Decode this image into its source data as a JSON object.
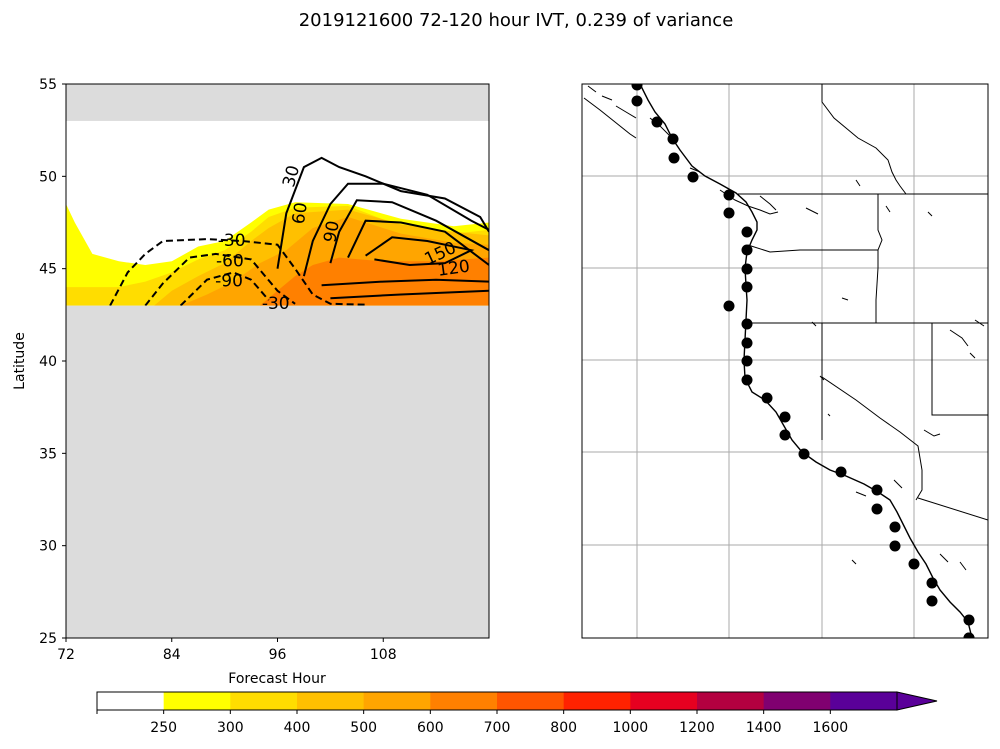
{
  "chart_data": [
    {
      "type": "contour",
      "title": "2019121600 72-120 hour IVT, 0.239 of variance",
      "xlabel": "Forecast Hour",
      "ylabel": "Latitude",
      "xlim": [
        72,
        120
      ],
      "ylim": [
        25,
        55
      ],
      "xticks": [
        "72",
        "84",
        "96",
        "108"
      ],
      "yticks": [
        "25",
        "30",
        "35",
        "40",
        "45",
        "50",
        "55"
      ],
      "missing_color": "#dcdcdc",
      "data_band_lat": [
        43,
        53
      ],
      "filled_ivt": [
        {
          "level": "250-300",
          "color": "#ffff00",
          "outline": [
            [
              72,
              44
            ],
            [
              72,
              48.5
            ],
            [
              73,
              47.5
            ],
            [
              75,
              45.8
            ],
            [
              78,
              45.4
            ],
            [
              81,
              45.2
            ],
            [
              84,
              45.4
            ],
            [
              87,
              46.2
            ],
            [
              90,
              46.5
            ],
            [
              93,
              47.5
            ],
            [
              95,
              48.2
            ],
            [
              98,
              48.6
            ],
            [
              104,
              48.5
            ],
            [
              110,
              47.7
            ],
            [
              116,
              47.3
            ],
            [
              120,
              47.5
            ],
            [
              120,
              43
            ],
            [
              72,
              43
            ]
          ]
        },
        {
          "level": "300-400",
          "color": "#ffdd00",
          "outline": [
            [
              72,
              44
            ],
            [
              75,
              44
            ],
            [
              78,
              44
            ],
            [
              81,
              44.3
            ],
            [
              84,
              44.8
            ],
            [
              87,
              45.5
            ],
            [
              90,
              46
            ],
            [
              93,
              47
            ],
            [
              95,
              47.8
            ],
            [
              98,
              48.3
            ],
            [
              104,
              48.4
            ],
            [
              110,
              47.3
            ],
            [
              116,
              46.9
            ],
            [
              120,
              47.1
            ],
            [
              120,
              43
            ],
            [
              72,
              43
            ]
          ]
        },
        {
          "level": "400-500",
          "color": "#ffc000",
          "outline": [
            [
              82,
              43
            ],
            [
              84,
              43.8
            ],
            [
              87,
              44.6
            ],
            [
              90,
              45.3
            ],
            [
              93,
              46.5
            ],
            [
              95,
              47.2
            ],
            [
              98,
              48
            ],
            [
              104,
              48.2
            ],
            [
              110,
              47.4
            ],
            [
              116,
              47
            ],
            [
              120,
              46.8
            ],
            [
              120,
              43
            ]
          ]
        },
        {
          "level": "500-600",
          "color": "#ffa500",
          "outline": [
            [
              85,
              43
            ],
            [
              88,
              43.6
            ],
            [
              91,
              44.3
            ],
            [
              94,
              45.3
            ],
            [
              97,
              46
            ],
            [
              100,
              47.2
            ],
            [
              104,
              47.8
            ],
            [
              110,
              46.9
            ],
            [
              116,
              46.4
            ],
            [
              120,
              46.3
            ],
            [
              120,
              43
            ]
          ]
        },
        {
          "level": "600-700",
          "color": "#ff8000",
          "outline": [
            [
              94,
              43
            ],
            [
              96,
              43.8
            ],
            [
              98,
              44.6
            ],
            [
              100,
              45.2
            ],
            [
              103,
              45.6
            ],
            [
              108,
              45.4
            ],
            [
              114,
              45.4
            ],
            [
              120,
              45.6
            ],
            [
              120,
              43
            ]
          ]
        }
      ],
      "contours": [
        {
          "level": "-30",
          "style": "dashed",
          "points": [
            [
              77,
              43
            ],
            [
              79,
              44.8
            ],
            [
              81,
              45.8
            ],
            [
              83,
              46.5
            ],
            [
              88,
              46.6
            ],
            [
              92,
              46.5
            ],
            [
              96,
              46.3
            ],
            [
              98,
              45
            ],
            [
              100,
              43.6
            ],
            [
              102,
              43.1
            ],
            [
              106,
              43.05
            ]
          ]
        },
        {
          "level": "-60",
          "style": "dashed",
          "points": [
            [
              81,
              43
            ],
            [
              83,
              44.2
            ],
            [
              86,
              45.6
            ],
            [
              89,
              45.8
            ],
            [
              93,
              45.5
            ],
            [
              96,
              43.8
            ],
            [
              98,
              43.1
            ]
          ]
        },
        {
          "level": "-90",
          "style": "dashed",
          "points": [
            [
              85,
              43
            ],
            [
              88,
              44.4
            ],
            [
              91,
              44.8
            ],
            [
              93,
              44.4
            ],
            [
              95,
              43.3
            ]
          ]
        },
        {
          "level": "30",
          "style": "solid",
          "points": [
            [
              96,
              45
            ],
            [
              97,
              48
            ],
            [
              99,
              50.5
            ],
            [
              101,
              51
            ],
            [
              103,
              50.5
            ],
            [
              106,
              50
            ],
            [
              110,
              49.2
            ],
            [
              115,
              48.8
            ],
            [
              119,
              47.8
            ],
            [
              120,
              47
            ]
          ]
        },
        {
          "level": "60",
          "style": "solid",
          "points": [
            [
              99,
              44.6
            ],
            [
              100,
              46.5
            ],
            [
              102,
              48.5
            ],
            [
              104,
              49.6
            ],
            [
              108,
              49.6
            ],
            [
              113,
              49
            ],
            [
              118,
              47.6
            ],
            [
              120,
              47.1
            ]
          ]
        },
        {
          "level": "90",
          "style": "solid",
          "points": [
            [
              102,
              45.3
            ],
            [
              103,
              47
            ],
            [
              105,
              48.7
            ],
            [
              109,
              48.6
            ],
            [
              114,
              47.6
            ],
            [
              120,
              46
            ]
          ]
        },
        {
          "level": "120",
          "style": "solid",
          "points": [
            [
              104,
              45.6
            ],
            [
              106,
              47.6
            ],
            [
              110,
              47.5
            ],
            [
              115,
              47
            ],
            [
              120,
              45.2
            ]
          ]
        },
        {
          "level": "150",
          "style": "solid",
          "points": [
            [
              106,
              45.7
            ],
            [
              109,
              46.7
            ],
            [
              113,
              46.5
            ],
            [
              118,
              46
            ],
            [
              115,
              45.3
            ],
            [
              111,
              45.2
            ],
            [
              107,
              45.5
            ]
          ]
        },
        {
          "level": "0-low",
          "style": "solid",
          "points": [
            [
              101,
              44.1
            ],
            [
              108,
              44.3
            ],
            [
              114,
              44.4
            ],
            [
              120,
              44.3
            ]
          ]
        },
        {
          "level": "0-bottom",
          "style": "solid",
          "points": [
            [
              102,
              43.4
            ],
            [
              110,
              43.6
            ],
            [
              120,
              43.8
            ]
          ]
        }
      ],
      "contour_labels": [
        {
          "text": "30",
          "x": 97.6,
          "y": 50.0,
          "rotate": -75
        },
        {
          "text": "60",
          "x": 98.6,
          "y": 48.0,
          "rotate": -82
        },
        {
          "text": "90",
          "x": 102.2,
          "y": 47.0,
          "rotate": -80
        },
        {
          "text": "150",
          "x": 114.5,
          "y": 45.8,
          "rotate": -25
        },
        {
          "text": "120",
          "x": 116.0,
          "y": 45.0,
          "rotate": -8
        },
        {
          "text": "-30",
          "x": 90.8,
          "y": 46.5,
          "rotate": 0
        },
        {
          "text": "-60",
          "x": 90.6,
          "y": 45.4,
          "rotate": 0
        },
        {
          "text": "-90",
          "x": 90.5,
          "y": 44.3,
          "rotate": 0
        },
        {
          "text": "-30",
          "x": 95.8,
          "y": 43.1,
          "rotate": 0
        }
      ]
    },
    {
      "type": "map",
      "region": "US West Coast",
      "gridlines": true,
      "storm_track_points": [
        [
          1,
          1
        ],
        [
          2,
          2
        ],
        [
          3,
          3
        ],
        [
          4,
          4
        ],
        [
          5,
          5
        ],
        [
          6,
          6
        ],
        [
          7,
          7
        ],
        [
          8,
          8
        ],
        [
          9,
          9
        ],
        [
          10,
          10
        ],
        [
          11,
          11
        ],
        [
          12,
          12
        ],
        [
          13,
          13
        ],
        [
          14,
          14
        ],
        [
          15,
          15
        ],
        [
          16,
          16
        ],
        [
          17,
          17
        ],
        [
          18,
          18
        ],
        [
          19,
          19
        ],
        [
          20,
          20
        ],
        [
          21,
          21
        ],
        [
          22,
          22
        ],
        [
          23,
          23
        ],
        [
          24,
          24
        ],
        [
          25,
          25
        ],
        [
          26,
          26
        ],
        [
          27,
          27
        ],
        [
          28,
          28
        ],
        [
          29,
          29
        ],
        [
          30,
          30
        ],
        [
          31,
          31
        ],
        [
          32,
          32
        ]
      ]
    },
    {
      "type": "colorbar",
      "ticks": [
        "250",
        "300",
        "400",
        "500",
        "600",
        "700",
        "800",
        "1000",
        "1200",
        "1400",
        "1600"
      ],
      "colors": [
        "#ffffff",
        "#ffff00",
        "#ffdd00",
        "#ffc000",
        "#ffa500",
        "#ff8000",
        "#ff5500",
        "#ff2200",
        "#e60020",
        "#b30040",
        "#800070",
        "#5a0099"
      ],
      "extend": "max"
    }
  ]
}
